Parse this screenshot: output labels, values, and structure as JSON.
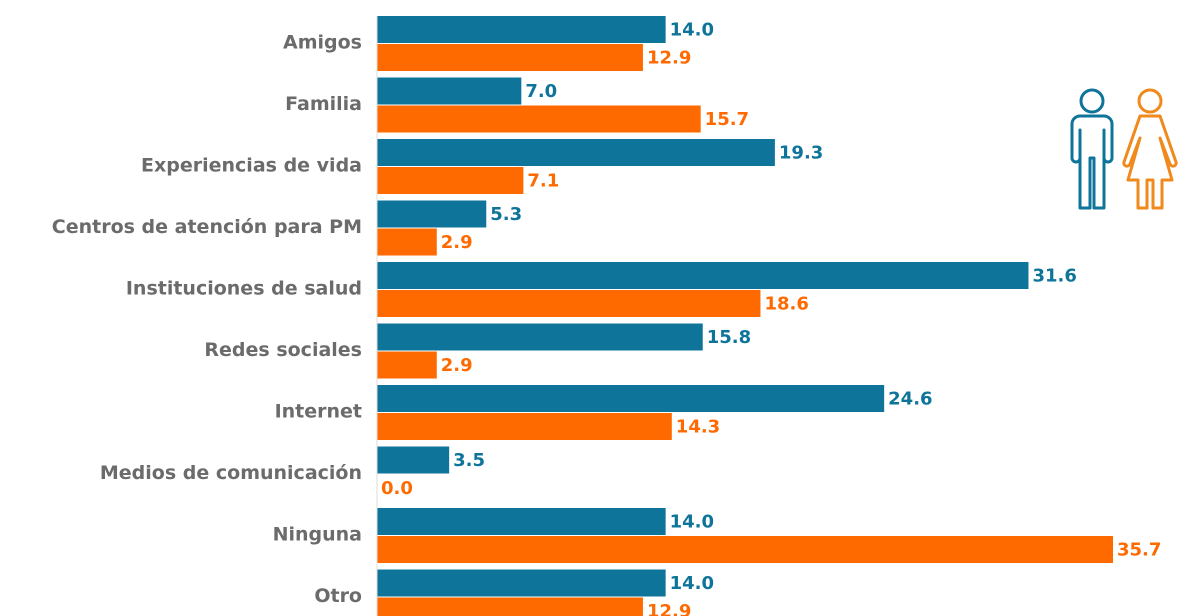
{
  "chart_data": {
    "type": "bar",
    "orientation": "horizontal",
    "categories": [
      "Amigos",
      "Familia",
      "Experiencias de vida",
      "Centros de atención para PM",
      "Instituciones de salud",
      "Redes sociales",
      "Internet",
      "Medios de comunicación",
      "Ninguna",
      "Otro"
    ],
    "series": [
      {
        "color": "#0e7499",
        "values": [
          14,
          7,
          19.3,
          5.3,
          31.6,
          15.8,
          24.6,
          3.5,
          14,
          14
        ],
        "value_labels": [
          "14.0",
          "7.0",
          "19.3",
          "5.3",
          "31.6",
          "15.8",
          "24.6",
          "3.5",
          "14.0",
          "14.0"
        ]
      },
      {
        "color": "#ff6a00",
        "values": [
          12.9,
          15.7,
          7.1,
          2.9,
          18.6,
          2.9,
          14.3,
          0,
          35.7,
          12.9
        ],
        "value_labels": [
          "12.9",
          "15.7",
          "7.1",
          "2.9",
          "18.6",
          "2.9",
          "14.3",
          "0.0",
          "35.7",
          "12.9"
        ]
      }
    ]
  }
}
